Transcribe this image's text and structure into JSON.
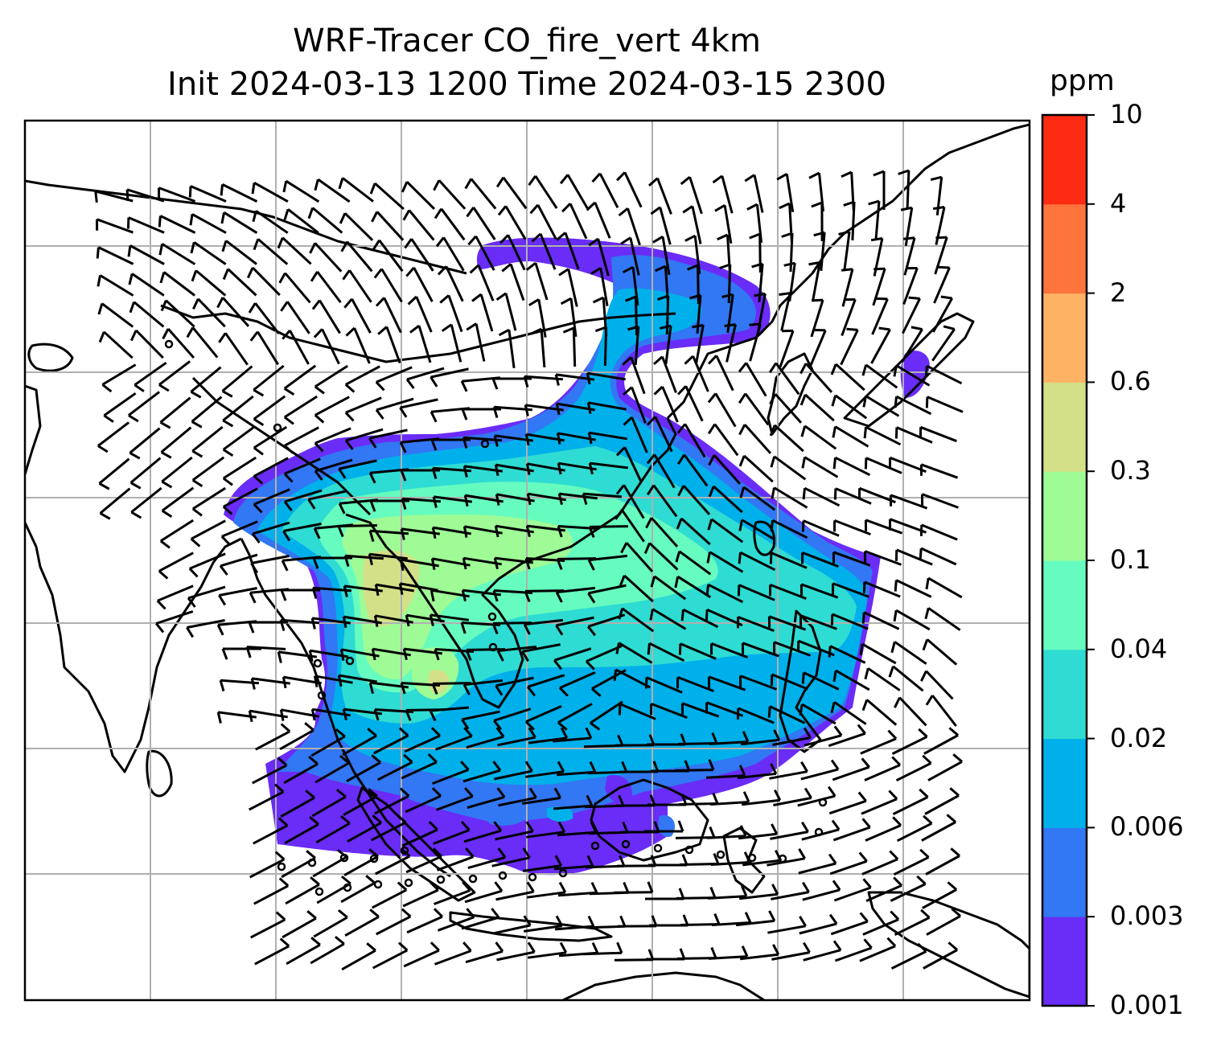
{
  "title": {
    "line1": "WRF-Tracer CO_fire_vert 4km",
    "line2": "Init 2024-03-13 1200 Time 2024-03-15 2300"
  },
  "colorbar": {
    "unit": "ppm",
    "tick_labels": [
      "0.001",
      "0.003",
      "0.006",
      "0.02",
      "0.04",
      "0.1",
      "0.3",
      "0.6",
      "2",
      "4",
      "10"
    ],
    "colors": [
      "#6a2cf7",
      "#3277f3",
      "#00b0ea",
      "#2fdcd3",
      "#66fcbf",
      "#9ffb96",
      "#d4e088",
      "#fdb363",
      "#fe743d",
      "#fe2b13"
    ]
  },
  "map": {
    "variable": "CO_fire_vert",
    "palette": {
      "c0": "#6a2cf7",
      "c1": "#3277f3",
      "c2": "#00b0ea",
      "c3": "#2fdcd3",
      "c4": "#66fcbf",
      "c5": "#9ffb96",
      "c6": "#d4e088"
    },
    "gridline_color": "#b0b0b0",
    "coastline_color": "#000000"
  }
}
